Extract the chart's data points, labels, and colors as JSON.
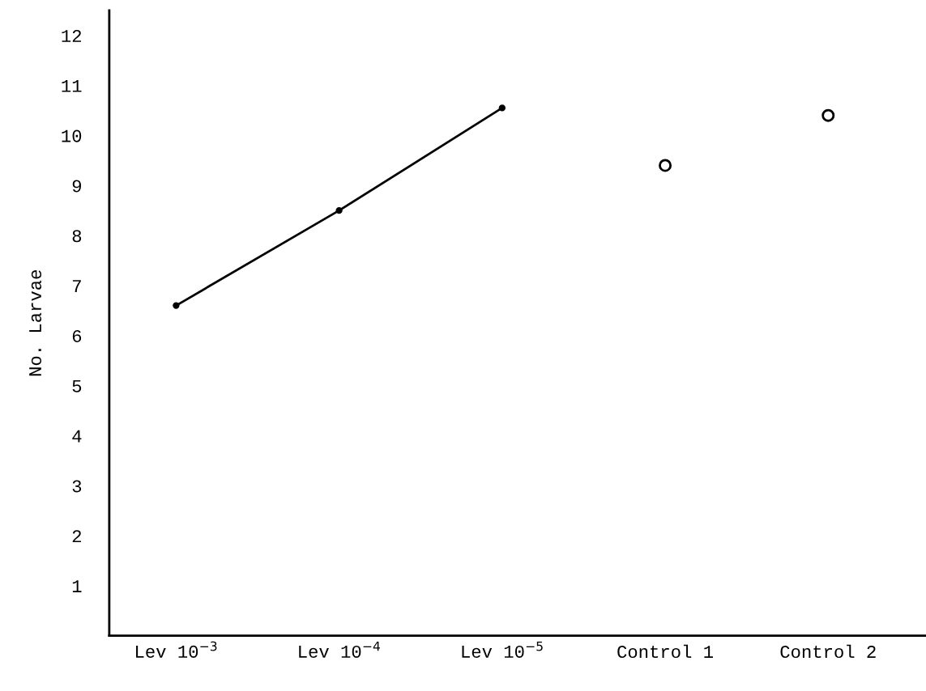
{
  "chart_data": {
    "type": "line",
    "ylabel": "No. Larvae",
    "categories": [
      "Lev 10$^{−3}$",
      "Lev 10$^{−4}$",
      "Lev 10$^{−5}$",
      "Control 1",
      "Control 2"
    ],
    "series": [
      {
        "color": "#000000",
        "values": [
          6.6,
          8.5,
          10.55,
          null,
          null
        ]
      },
      {
        "type": "scatter",
        "color": "#000000",
        "values": [
          null,
          null,
          null,
          9.4,
          10.4
        ]
      }
    ],
    "ylim": [
      0,
      12.5
    ],
    "yticks": [
      1,
      2,
      3,
      4,
      5,
      6,
      7,
      8,
      9,
      10,
      11,
      12
    ],
    "grid": false,
    "marker": "circle",
    "line_style": "solid"
  }
}
